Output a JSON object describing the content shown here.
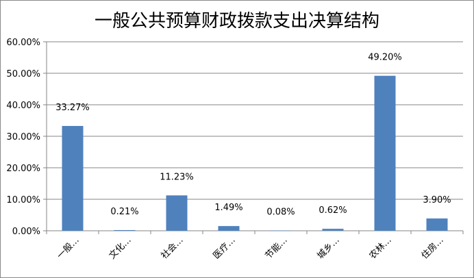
{
  "chart_data": {
    "type": "bar",
    "title": "一般公共预算财政拨款支出决算结构",
    "categories": [
      "一般…",
      "文化…",
      "社会…",
      "医疗…",
      "节能…",
      "城乡…",
      "农林…",
      "住房…"
    ],
    "values": [
      33.27,
      0.21,
      11.23,
      1.49,
      0.08,
      0.62,
      49.2,
      3.9
    ],
    "data_labels": [
      "33.27%",
      "0.21%",
      "11.23%",
      "1.49%",
      "0.08%",
      "0.62%",
      "49.20%",
      "3.90%"
    ],
    "y_ticks": [
      "0.00%",
      "10.00%",
      "20.00%",
      "30.00%",
      "40.00%",
      "50.00%",
      "60.00%"
    ],
    "ylim": [
      0,
      60
    ],
    "xlabel": "",
    "ylabel": "",
    "grid": true,
    "legend": "none",
    "colors": {
      "bar": "#4F81BD",
      "grid": "#868686",
      "axis": "#868686"
    }
  }
}
